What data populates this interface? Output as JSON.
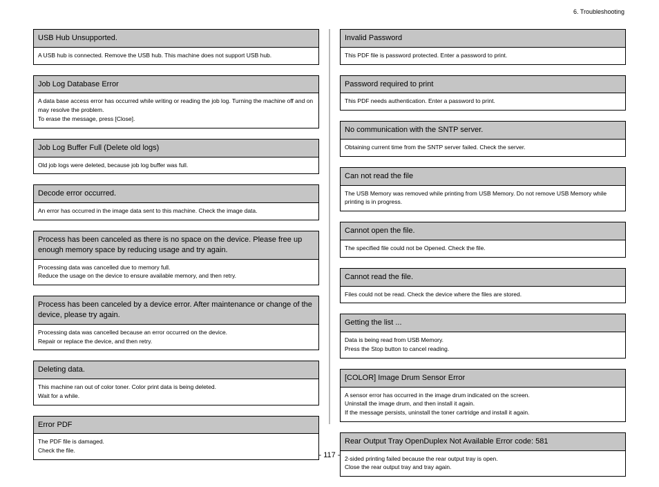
{
  "breadcrumb": "6. Troubleshooting",
  "page_number": "- 117 -",
  "left": [
    {
      "title": "USB Hub Unsupported.",
      "body": [
        "A USB hub is connected. Remove the USB hub. This machine does not support USB hub."
      ]
    },
    {
      "title": "Job Log Database Error",
      "body": [
        "A data base access error has occurred while writing or reading the job log. Turning the machine off and on may resolve the problem.",
        "To erase the message, press [Close]."
      ]
    },
    {
      "title": "Job Log Buffer Full (Delete old logs)",
      "body": [
        "Old job logs were deleted, because job log buffer was full."
      ]
    },
    {
      "title": "Decode error occurred.",
      "body": [
        "An error has occurred in the image data sent to this machine. Check the image data."
      ]
    },
    {
      "title": "Process has been canceled as there is no space on the device. Please free up enough memory space by reducing usage and try again.",
      "body": [
        "Processing data was cancelled due to memory full.",
        "Reduce the usage on the device to ensure available memory, and then retry."
      ]
    },
    {
      "title": "Process has been canceled by a device error. After maintenance or change of the device, please try again.",
      "body": [
        "Processing data was cancelled because an error occurred on the device.",
        "Repair or replace the device, and then retry."
      ]
    },
    {
      "title": "Deleting data.",
      "body": [
        "This machine ran out of color toner. Color print data is being deleted.",
        "Wait for a while."
      ]
    },
    {
      "title": "Error PDF",
      "body": [
        "The PDF file is damaged.",
        "Check the file."
      ]
    }
  ],
  "right": [
    {
      "title": "Invalid Password",
      "body": [
        "This PDF file is password protected. Enter a password to print."
      ]
    },
    {
      "title": "Password required to print",
      "body": [
        "This PDF needs authentication. Enter a password to print."
      ]
    },
    {
      "title": "No communication with the SNTP server.",
      "body": [
        "Obtaining current time from the SNTP server failed. Check the server."
      ]
    },
    {
      "title": "Can not read the file",
      "body": [
        "The USB Memory was removed while printing from USB Memory. Do not remove USB Memory while printing is in progress."
      ]
    },
    {
      "title": "Cannot open the file.",
      "body": [
        "The specified file could not be Opened. Check the file."
      ]
    },
    {
      "title": "Cannot read the file.",
      "body": [
        "Files could not be read. Check the device where the files are stored."
      ]
    },
    {
      "title": "Getting the list ...",
      "body": [
        "Data is being read from USB Memory.",
        "Press the Stop button to cancel reading."
      ]
    },
    {
      "title": "[COLOR] Image Drum Sensor Error",
      "body": [
        "A sensor error has occurred in the image drum indicated on the screen.",
        "Uninstall the image drum, and then install it again.",
        "If the message persists, uninstall the toner cartridge and install it again."
      ]
    },
    {
      "title": "Rear Output Tray OpenDuplex Not Available Error code: 581",
      "body": [
        "2-sided printing failed because the rear output tray is open.",
        "Close the rear output tray and tray again."
      ]
    }
  ]
}
